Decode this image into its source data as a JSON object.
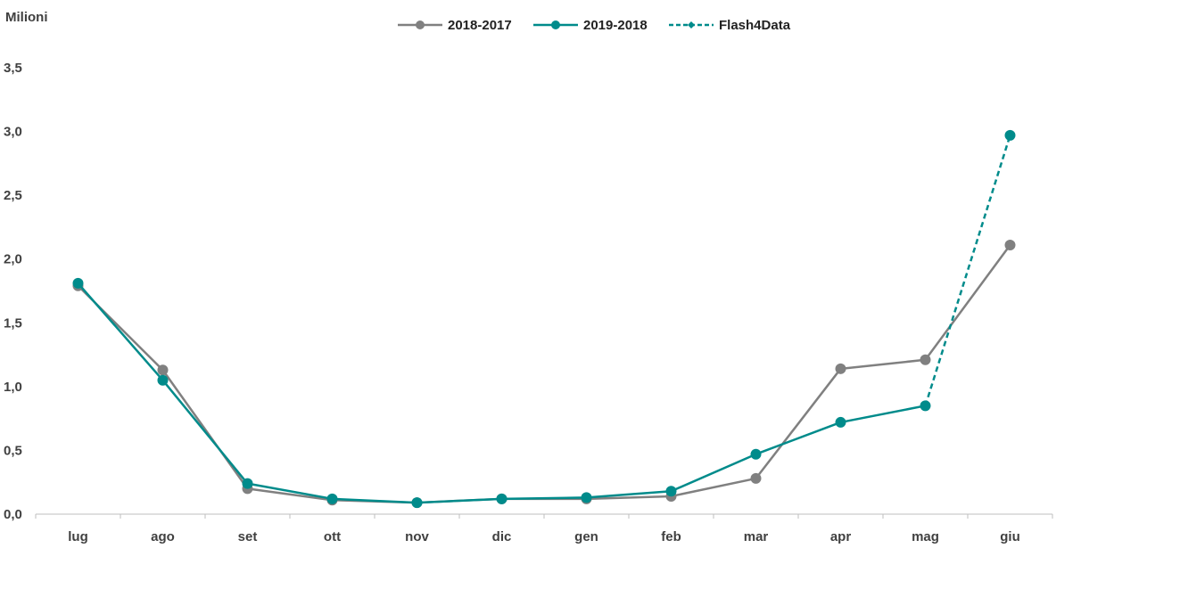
{
  "chart_data": {
    "type": "line",
    "ylabel": "Milioni",
    "categories": [
      "lug",
      "ago",
      "set",
      "ott",
      "nov",
      "dic",
      "gen",
      "feb",
      "mar",
      "apr",
      "mag",
      "giu"
    ],
    "ylim": [
      0,
      3.5
    ],
    "yticks": [
      "0,0",
      "0,5",
      "1,0",
      "1,5",
      "2,0",
      "2,5",
      "3,0",
      "3,5"
    ],
    "grid": false,
    "legend_position": "top-center",
    "series": [
      {
        "name": "2018-2017",
        "color": "#808080",
        "style": "solid",
        "marker": "circle",
        "values": [
          1.79,
          1.13,
          0.2,
          0.11,
          0.09,
          0.12,
          0.12,
          0.14,
          0.28,
          1.14,
          1.21,
          2.11
        ]
      },
      {
        "name": "2019-2018",
        "color": "#008B8B",
        "style": "solid",
        "marker": "circle",
        "values": [
          1.81,
          1.05,
          0.24,
          0.12,
          0.09,
          0.12,
          0.13,
          0.18,
          0.47,
          0.72,
          0.85,
          null
        ]
      },
      {
        "name": "Flash4Data",
        "color": "#008B8B",
        "style": "dashed",
        "marker": "diamond",
        "values": [
          null,
          null,
          null,
          null,
          null,
          null,
          null,
          null,
          null,
          null,
          0.85,
          2.97
        ]
      }
    ]
  }
}
